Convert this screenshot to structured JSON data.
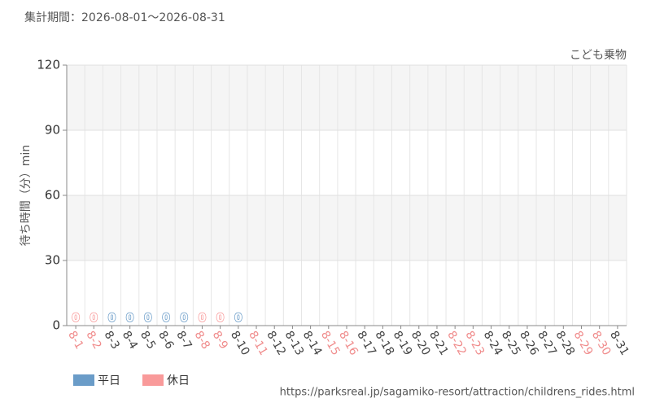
{
  "chart_data": {
    "type": "bar",
    "title": "集計期間：2026-08-01〜2026-08-31",
    "subtitle": "こども乗物",
    "y_label": "待ち時間（分）min",
    "source": "https://parksreal.jp/sagamiko-resort/attraction/childrens_rides.html",
    "categories": [
      "8-1",
      "8-2",
      "8-3",
      "8-4",
      "8-5",
      "8-6",
      "8-7",
      "8-8",
      "8-9",
      "8-10",
      "8-11",
      "8-12",
      "8-13",
      "8-14",
      "8-15",
      "8-16",
      "8-17",
      "8-18",
      "8-19",
      "8-20",
      "8-21",
      "8-22",
      "8-23",
      "8-24",
      "8-25",
      "8-26",
      "8-27",
      "8-28",
      "8-29",
      "8-30",
      "8-31"
    ],
    "category_colors": [
      "#f08c8c",
      "#f08c8c",
      "#444444",
      "#444444",
      "#444444",
      "#444444",
      "#444444",
      "#f08c8c",
      "#f08c8c",
      "#444444",
      "#f08c8c",
      "#444444",
      "#444444",
      "#444444",
      "#f08c8c",
      "#f08c8c",
      "#444444",
      "#444444",
      "#444444",
      "#444444",
      "#444444",
      "#f08c8c",
      "#f08c8c",
      "#444444",
      "#444444",
      "#444444",
      "#444444",
      "#444444",
      "#f08c8c",
      "#f08c8c",
      "#444444"
    ],
    "series": [
      {
        "name": "平日",
        "color": "#6a9cc8",
        "values": [
          null,
          null,
          0,
          0,
          0,
          0,
          0,
          null,
          null,
          0,
          null,
          null,
          null,
          null,
          null,
          null,
          null,
          null,
          null,
          null,
          null,
          null,
          null,
          null,
          null,
          null,
          null,
          null,
          null,
          null,
          null
        ]
      },
      {
        "name": "休日",
        "color": "#f99a9a",
        "values": [
          0,
          0,
          null,
          null,
          null,
          null,
          null,
          0,
          0,
          null,
          null,
          null,
          null,
          null,
          null,
          null,
          null,
          null,
          null,
          null,
          null,
          null,
          null,
          null,
          null,
          null,
          null,
          null,
          null,
          null,
          null
        ]
      }
    ],
    "ylim": [
      0,
      120
    ],
    "yticks": [
      0,
      30,
      60,
      90,
      120
    ],
    "grid": true
  }
}
